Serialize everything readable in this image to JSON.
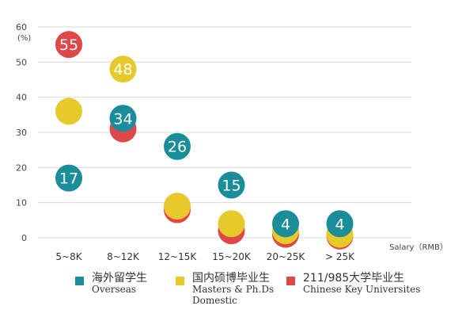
{
  "chart_data": {
    "type": "scatter",
    "categories": [
      "5~8K",
      "8~12K",
      "12~15K",
      "15~20K",
      "20~25K",
      "> 25K"
    ],
    "xlabel": "Salary（RMB）",
    "ylabel": "(%)",
    "ylim": [
      0,
      60
    ],
    "yticks": [
      0,
      10,
      20,
      30,
      40,
      50,
      60
    ],
    "grid": true,
    "legend_position": "bottom",
    "series": [
      {
        "key": "overseas",
        "color": "#1b8c99",
        "values": [
          17,
          34,
          26,
          15,
          4,
          4
        ],
        "labels": [
          "17",
          "34",
          "26",
          "15",
          "4",
          "4"
        ]
      },
      {
        "key": "masters",
        "color": "#e6c92a",
        "values": [
          36,
          48,
          9,
          4,
          2,
          1
        ],
        "labels": [
          "",
          "48",
          "",
          "",
          "",
          ""
        ]
      },
      {
        "key": "key211",
        "color": "#de4848",
        "values": [
          55,
          31,
          8,
          2,
          1,
          0.5
        ],
        "labels": [
          "55",
          "",
          "",
          "",
          "",
          ""
        ]
      }
    ]
  },
  "legend": [
    {
      "swatch_color": "#1b8c99",
      "cn": "海外留学生",
      "en": "Overseas",
      "en2": ""
    },
    {
      "swatch_color": "#e6c92a",
      "cn": "国内硕博毕业生",
      "en": "Masters & Ph.Ds",
      "en2": "Domestic"
    },
    {
      "swatch_color": "#de4848",
      "cn": "211/985大学毕业生",
      "en": "Chinese Key Universites",
      "en2": ""
    }
  ]
}
